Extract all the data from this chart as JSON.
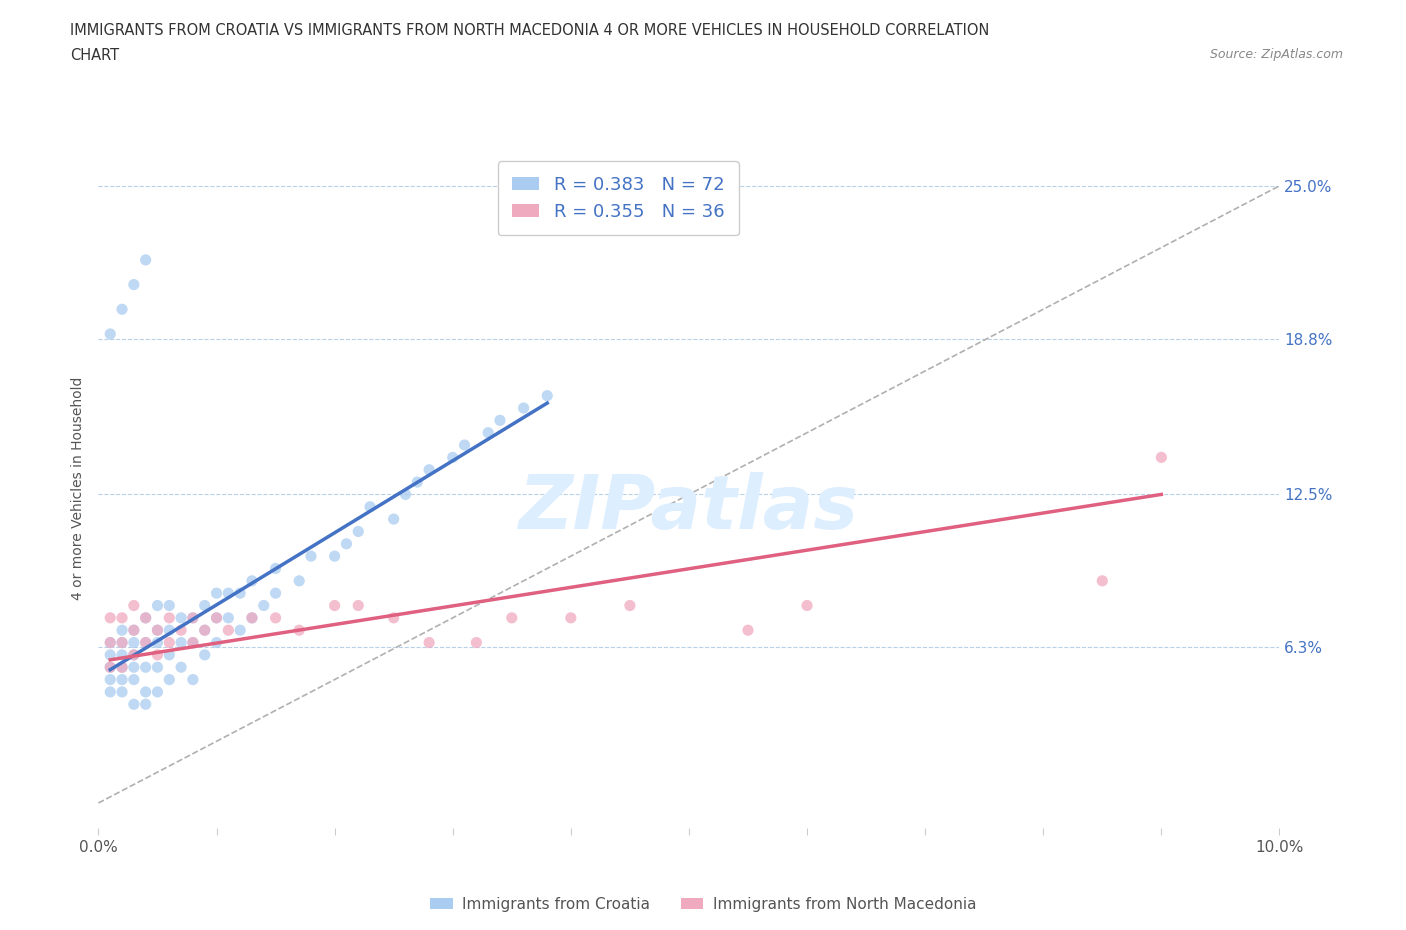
{
  "title_line1": "IMMIGRANTS FROM CROATIA VS IMMIGRANTS FROM NORTH MACEDONIA 4 OR MORE VEHICLES IN HOUSEHOLD CORRELATION",
  "title_line2": "CHART",
  "source_text": "Source: ZipAtlas.com",
  "ylabel": "4 or more Vehicles in Household",
  "xlim": [
    0.0,
    0.1
  ],
  "ylim": [
    -0.01,
    0.265
  ],
  "ytick_labels_right": [
    "6.3%",
    "12.5%",
    "18.8%",
    "25.0%"
  ],
  "ytick_values_right": [
    0.063,
    0.125,
    0.188,
    0.25
  ],
  "hline_values": [
    0.063,
    0.125,
    0.188,
    0.25
  ],
  "croatia_color": "#aaccf0",
  "north_macedonia_color": "#f0aac0",
  "croatia_line_color": "#4472c4",
  "north_macedonia_line_color": "#e06080",
  "R_croatia": 0.383,
  "N_croatia": 72,
  "R_north_macedonia": 0.355,
  "N_north_macedonia": 36,
  "background_color": "#ffffff",
  "watermark_text": "ZIPatlas",
  "watermark_color": "#ddeeff",
  "legend_label_1": "Immigrants from Croatia",
  "legend_label_2": "Immigrants from North Macedonia",
  "croatia_scatter_x": [
    0.001,
    0.001,
    0.001,
    0.001,
    0.001,
    0.002,
    0.002,
    0.002,
    0.002,
    0.002,
    0.002,
    0.003,
    0.003,
    0.003,
    0.003,
    0.003,
    0.003,
    0.004,
    0.004,
    0.004,
    0.004,
    0.004,
    0.005,
    0.005,
    0.005,
    0.005,
    0.005,
    0.006,
    0.006,
    0.006,
    0.006,
    0.007,
    0.007,
    0.007,
    0.008,
    0.008,
    0.008,
    0.009,
    0.009,
    0.009,
    0.01,
    0.01,
    0.01,
    0.011,
    0.011,
    0.012,
    0.012,
    0.013,
    0.013,
    0.014,
    0.015,
    0.015,
    0.017,
    0.018,
    0.02,
    0.021,
    0.022,
    0.023,
    0.025,
    0.026,
    0.027,
    0.028,
    0.03,
    0.031,
    0.033,
    0.034,
    0.036,
    0.038,
    0.001,
    0.002,
    0.003,
    0.004
  ],
  "croatia_scatter_y": [
    0.055,
    0.06,
    0.065,
    0.05,
    0.045,
    0.045,
    0.05,
    0.055,
    0.06,
    0.065,
    0.07,
    0.04,
    0.05,
    0.055,
    0.06,
    0.065,
    0.07,
    0.04,
    0.045,
    0.055,
    0.065,
    0.075,
    0.045,
    0.055,
    0.065,
    0.07,
    0.08,
    0.05,
    0.06,
    0.07,
    0.08,
    0.055,
    0.065,
    0.075,
    0.05,
    0.065,
    0.075,
    0.06,
    0.07,
    0.08,
    0.065,
    0.075,
    0.085,
    0.075,
    0.085,
    0.07,
    0.085,
    0.075,
    0.09,
    0.08,
    0.085,
    0.095,
    0.09,
    0.1,
    0.1,
    0.105,
    0.11,
    0.12,
    0.115,
    0.125,
    0.13,
    0.135,
    0.14,
    0.145,
    0.15,
    0.155,
    0.16,
    0.165,
    0.19,
    0.2,
    0.21,
    0.22
  ],
  "nmacedonia_scatter_x": [
    0.001,
    0.001,
    0.001,
    0.002,
    0.002,
    0.002,
    0.003,
    0.003,
    0.003,
    0.004,
    0.004,
    0.005,
    0.005,
    0.006,
    0.006,
    0.007,
    0.008,
    0.008,
    0.009,
    0.01,
    0.011,
    0.013,
    0.015,
    0.017,
    0.02,
    0.022,
    0.025,
    0.028,
    0.032,
    0.035,
    0.04,
    0.045,
    0.055,
    0.06,
    0.085,
    0.09
  ],
  "nmacedonia_scatter_y": [
    0.055,
    0.065,
    0.075,
    0.055,
    0.065,
    0.075,
    0.06,
    0.07,
    0.08,
    0.065,
    0.075,
    0.06,
    0.07,
    0.065,
    0.075,
    0.07,
    0.065,
    0.075,
    0.07,
    0.075,
    0.07,
    0.075,
    0.075,
    0.07,
    0.08,
    0.08,
    0.075,
    0.065,
    0.065,
    0.075,
    0.075,
    0.08,
    0.07,
    0.08,
    0.09,
    0.14
  ],
  "croatia_line_x": [
    0.001,
    0.038
  ],
  "croatia_line_y": [
    0.054,
    0.162
  ],
  "nmacedonia_line_x": [
    0.001,
    0.09
  ],
  "nmacedonia_line_y": [
    0.058,
    0.125
  ],
  "dashed_line_x": [
    0.0,
    0.1
  ],
  "dashed_line_y": [
    0.0,
    0.25
  ]
}
